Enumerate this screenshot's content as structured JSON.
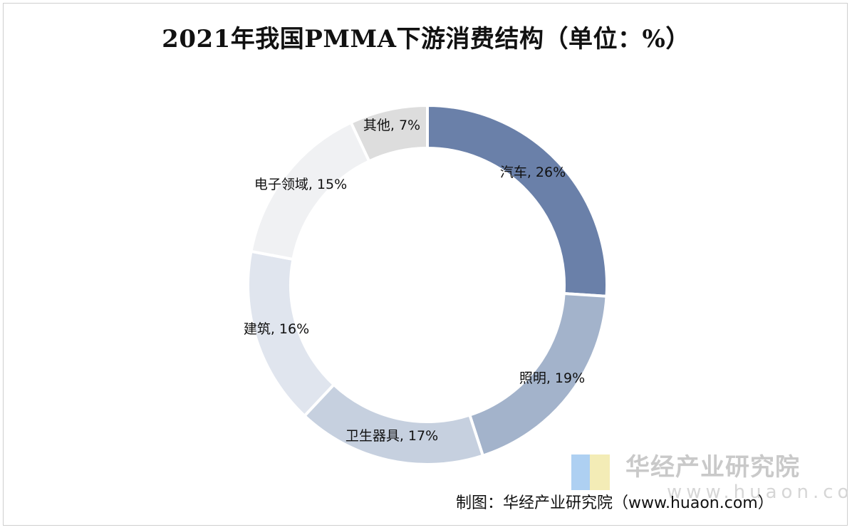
{
  "chart_data": {
    "type": "pie",
    "title": "2021年我国PMMA下游消费结构（单位：%）",
    "donut": true,
    "slices": [
      {
        "label": "汽车, 26%",
        "name": "汽车",
        "value": 26,
        "color": "#6a80a9"
      },
      {
        "label": "照明, 19%",
        "name": "照明",
        "value": 19,
        "color": "#a3b3cb"
      },
      {
        "label": "卫生器具, 17%",
        "name": "卫生器具",
        "value": 17,
        "color": "#c6d0df"
      },
      {
        "label": "建筑, 16%",
        "name": "建筑",
        "value": 16,
        "color": "#e0e5ee"
      },
      {
        "label": "电子领域, 15%",
        "name": "电子领域",
        "value": 15,
        "color": "#f0f1f3"
      },
      {
        "label": "其他, 7%",
        "name": "其他",
        "value": 7,
        "color": "#dddddd"
      }
    ]
  },
  "watermark": {
    "name": "华经产业研究院",
    "url": "www.huaon.com",
    "logo_colors": [
      "#aed0f2",
      "#f3ecb6"
    ]
  },
  "source_text": "制图：华经产业研究院（www.huaon.com）"
}
